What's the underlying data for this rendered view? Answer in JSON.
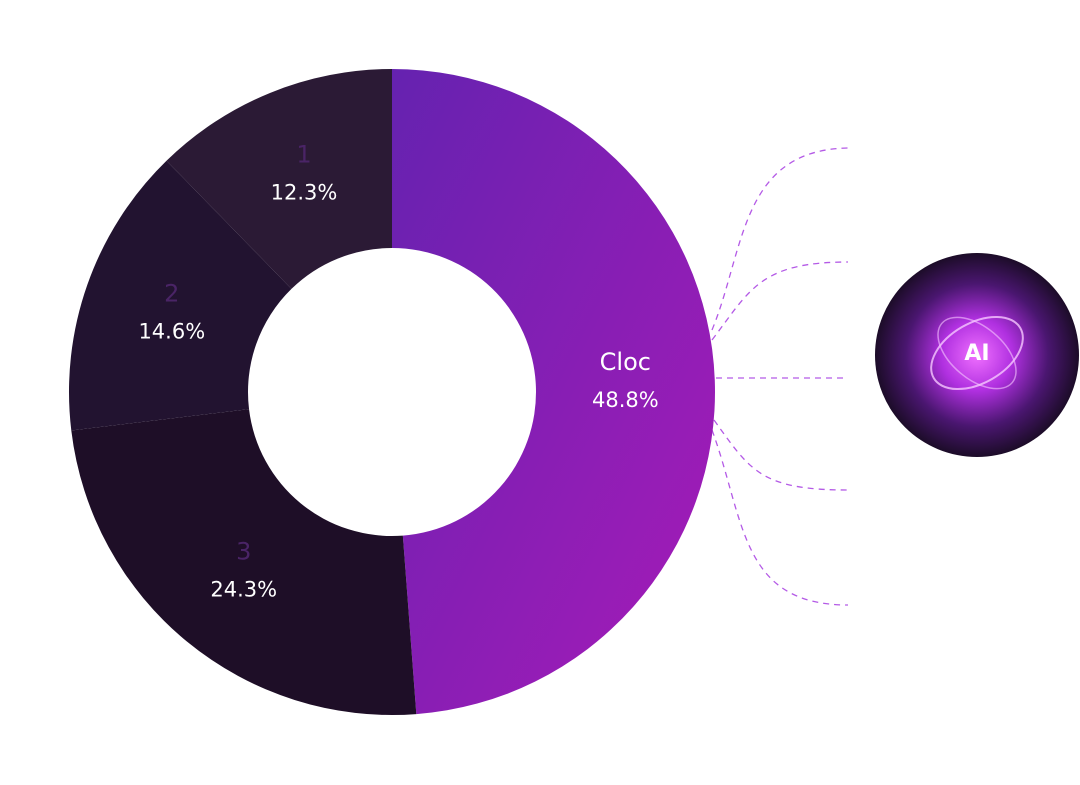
{
  "chart_data": {
    "type": "donut",
    "categories": [
      "Cloc",
      "3",
      "2",
      "1"
    ],
    "values": [
      48.8,
      24.3,
      14.6,
      12.3
    ],
    "value_labels": [
      "48.8%",
      "24.3%",
      "14.6%",
      "12.3%"
    ],
    "colors": [
      [
        "#6522b0",
        "#a81bb8"
      ],
      "#1e0e27",
      "#221330",
      "#2b1a35"
    ],
    "name_colors": [
      "#ffffff",
      "#4a2466",
      "#4a2466",
      "#4a2466"
    ],
    "annotation": "AI"
  }
}
